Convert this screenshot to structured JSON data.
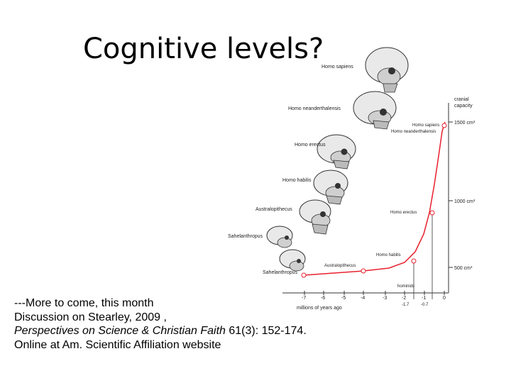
{
  "slide": {
    "title": "Cognitive levels?",
    "notes": {
      "line1": "---More to come, this month",
      "line2": "Discussion on Stearley, 2009 ,",
      "line3_italic": "Perspectives on Science & Christian Faith",
      "line3_rest": " 61(3): 152-174.",
      "line4": "Online at Am. Scientific Affiliation website"
    }
  },
  "figure": {
    "skulls": [
      {
        "label": "Homo sapiens"
      },
      {
        "label": "Homo neanderthalensis"
      },
      {
        "label": "Homo erectus"
      },
      {
        "label": "Homo habilis"
      },
      {
        "label": "Australopithecus"
      },
      {
        "label": "Sahelanthropus"
      },
      {
        "label": "Sahelanthropus"
      }
    ],
    "curve_labels": {
      "top": "Homo sapiens",
      "top2": "Homo neanderthalensis",
      "erectus": "Homo erectus",
      "habilis": "Homo habilis",
      "australo": "Australopithecus",
      "hominids": "hominids"
    },
    "y_axis": {
      "title_line1": "cranial",
      "title_line2": "capacity",
      "ticks": [
        "1500 cm³",
        "1000 cm³",
        "500 cm³"
      ]
    },
    "x_axis": {
      "ticks": [
        "-7",
        "-6",
        "-5",
        "-4",
        "-3",
        "-2",
        "-1",
        "0"
      ],
      "sub_ticks": [
        "-1.7",
        "-0.7"
      ],
      "label": "millions of years ago"
    },
    "colors": {
      "curve": "#e8212e"
    }
  }
}
